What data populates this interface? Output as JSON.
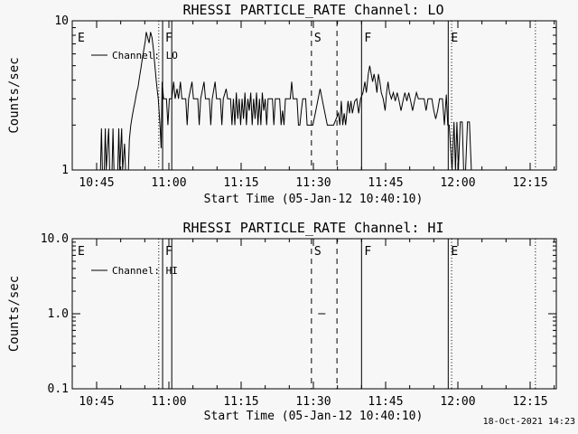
{
  "page": {
    "timestamp": "18-Oct-2021 14:23",
    "bg": "#f7f7f7",
    "fg": "#000000"
  },
  "markers": [
    {
      "m": 0.5,
      "style": "none",
      "label": "E"
    },
    {
      "m": 17.9,
      "style": "dotted",
      "label": ""
    },
    {
      "m": 18.7,
      "style": "solid",
      "label": "F"
    },
    {
      "m": 20.6,
      "style": "solid",
      "label": ""
    },
    {
      "m": 49.6,
      "style": "dashed",
      "label": "S"
    },
    {
      "m": 54.9,
      "style": "dashed",
      "label": ""
    },
    {
      "m": 60.0,
      "style": "solid",
      "label": "F"
    },
    {
      "m": 78.0,
      "style": "solid",
      "label": "E"
    },
    {
      "m": 78.7,
      "style": "dotted",
      "label": ""
    },
    {
      "m": 96.1,
      "style": "dotted",
      "label": ""
    }
  ],
  "chart_data": [
    {
      "type": "line",
      "panel": "LO",
      "title": "RHESSI PARTICLE_RATE Channel: LO",
      "xlabel": "Start Time (05-Jan-12 10:40:10)",
      "ylabel": "Counts/sec",
      "legend_label": "Channel: LO",
      "yscale": "log",
      "ylim": [
        1,
        10
      ],
      "yticks": [
        {
          "v": 1,
          "t": "1"
        },
        {
          "v": 10,
          "t": "10"
        }
      ],
      "x_unit": "minutes_after_10:40:00",
      "xlim_minutes": [
        -0.06,
        100.44
      ],
      "xticks": [
        {
          "m": 5,
          "t": "10:45"
        },
        {
          "m": 20,
          "t": "11:00"
        },
        {
          "m": 35,
          "t": "11:15"
        },
        {
          "m": 50,
          "t": "11:30"
        },
        {
          "m": 65,
          "t": "11:45"
        },
        {
          "m": 80,
          "t": "12:00"
        },
        {
          "m": 95,
          "t": "12:15"
        }
      ],
      "series": [
        {
          "name": "Channel: LO",
          "points": [
            [
              5.3,
              1
            ],
            [
              5.8,
              1
            ],
            [
              6.0,
              1.9
            ],
            [
              6.2,
              1
            ],
            [
              6.6,
              1
            ],
            [
              6.8,
              1.9
            ],
            [
              7.0,
              1
            ],
            [
              7.5,
              1.9
            ],
            [
              7.7,
              1
            ],
            [
              8.2,
              1
            ],
            [
              8.4,
              1.9
            ],
            [
              8.6,
              1
            ],
            [
              9.4,
              1
            ],
            [
              9.6,
              1.9
            ],
            [
              9.8,
              1
            ],
            [
              10.2,
              1.9
            ],
            [
              10.4,
              1
            ],
            [
              10.8,
              1.5
            ],
            [
              11.0,
              1
            ],
            [
              11.6,
              1
            ],
            [
              11.8,
              1.6
            ],
            [
              12.1,
              2.0
            ],
            [
              12.4,
              2.3
            ],
            [
              12.7,
              2.6
            ],
            [
              13.0,
              2.9
            ],
            [
              13.3,
              3.3
            ],
            [
              13.6,
              3.6
            ],
            [
              13.9,
              4.2
            ],
            [
              14.2,
              4.8
            ],
            [
              14.5,
              5.6
            ],
            [
              14.8,
              6.4
            ],
            [
              15.1,
              7.3
            ],
            [
              15.3,
              8.4
            ],
            [
              15.6,
              7.7
            ],
            [
              15.9,
              7.1
            ],
            [
              16.2,
              8.4
            ],
            [
              16.5,
              7.7
            ],
            [
              16.8,
              6.4
            ],
            [
              17.0,
              5.4
            ],
            [
              17.2,
              4.6
            ],
            [
              17.4,
              3.9
            ],
            [
              17.6,
              3.4
            ],
            [
              17.8,
              3.0
            ],
            [
              18.0,
              2.4
            ],
            [
              18.2,
              1.9
            ],
            [
              18.4,
              1.4
            ],
            [
              18.6,
              3.9
            ],
            [
              18.9,
              3.0
            ],
            [
              19.5,
              3.0
            ],
            [
              19.8,
              2.0
            ],
            [
              20.1,
              3.0
            ],
            [
              20.6,
              3.0
            ],
            [
              21.0,
              3.9
            ],
            [
              21.3,
              3.0
            ],
            [
              21.7,
              3.5
            ],
            [
              22.0,
              3.0
            ],
            [
              22.4,
              3.9
            ],
            [
              22.7,
              3.0
            ],
            [
              23.5,
              3.0
            ],
            [
              23.8,
              2.0
            ],
            [
              24.1,
              3.0
            ],
            [
              24.8,
              3.9
            ],
            [
              25.1,
              3.0
            ],
            [
              26.0,
              3.0
            ],
            [
              26.3,
              2.0
            ],
            [
              26.6,
              3.0
            ],
            [
              27.3,
              3.9
            ],
            [
              27.6,
              3.0
            ],
            [
              28.4,
              3.0
            ],
            [
              28.7,
              2.0
            ],
            [
              29.0,
              3.0
            ],
            [
              29.6,
              3.9
            ],
            [
              29.9,
              3.0
            ],
            [
              30.7,
              3.0
            ],
            [
              31.0,
              2.0
            ],
            [
              31.3,
              3.0
            ],
            [
              31.9,
              3.5
            ],
            [
              32.2,
              3.0
            ],
            [
              32.8,
              3.0
            ],
            [
              33.1,
              2.0
            ],
            [
              33.4,
              3.0
            ],
            [
              33.7,
              2.0
            ],
            [
              34.0,
              3.3
            ],
            [
              34.3,
              2.2
            ],
            [
              34.6,
              3.0
            ],
            [
              34.9,
              2.0
            ],
            [
              35.2,
              3.0
            ],
            [
              35.5,
              2.2
            ],
            [
              35.8,
              3.3
            ],
            [
              36.1,
              2.0
            ],
            [
              36.4,
              3.0
            ],
            [
              36.7,
              2.5
            ],
            [
              37.0,
              3.3
            ],
            [
              37.3,
              2.0
            ],
            [
              37.6,
              3.0
            ],
            [
              37.9,
              2.2
            ],
            [
              38.2,
              3.3
            ],
            [
              38.5,
              2.0
            ],
            [
              38.8,
              3.0
            ],
            [
              39.1,
              2.0
            ],
            [
              39.4,
              3.3
            ],
            [
              39.7,
              2.5
            ],
            [
              40.0,
              3.0
            ],
            [
              40.3,
              2.0
            ],
            [
              40.6,
              3.0
            ],
            [
              41.5,
              3.0
            ],
            [
              41.8,
              2.0
            ],
            [
              42.1,
              3.0
            ],
            [
              43.0,
              3.0
            ],
            [
              43.3,
              2.0
            ],
            [
              43.6,
              2.5
            ],
            [
              43.9,
              2.0
            ],
            [
              44.2,
              3.0
            ],
            [
              45.2,
              3.0
            ],
            [
              45.5,
              3.9
            ],
            [
              45.8,
              3.0
            ],
            [
              46.6,
              3.0
            ],
            [
              46.9,
              2.0
            ],
            [
              47.2,
              2.0
            ],
            [
              47.5,
              2.5
            ],
            [
              47.8,
              3.0
            ],
            [
              48.4,
              3.0
            ],
            [
              48.7,
              2.0
            ],
            [
              49.3,
              2.0
            ],
            [
              49.9,
              2.0
            ],
            [
              50.4,
              2.4
            ],
            [
              50.9,
              2.9
            ],
            [
              51.4,
              3.5
            ],
            [
              51.9,
              2.9
            ],
            [
              52.4,
              2.4
            ],
            [
              52.9,
              2.0
            ],
            [
              53.6,
              2.0
            ],
            [
              54.2,
              2.0
            ],
            [
              55.2,
              2.4
            ],
            [
              55.5,
              2.0
            ],
            [
              55.8,
              2.9
            ],
            [
              56.1,
              2.0
            ],
            [
              56.4,
              2.4
            ],
            [
              56.7,
              2.0
            ],
            [
              57.2,
              2.9
            ],
            [
              57.5,
              2.4
            ],
            [
              57.8,
              2.9
            ],
            [
              58.1,
              2.4
            ],
            [
              58.6,
              2.9
            ],
            [
              59.0,
              3.0
            ],
            [
              59.4,
              2.4
            ],
            [
              59.8,
              3.0
            ],
            [
              60.3,
              3.3
            ],
            [
              60.7,
              3.9
            ],
            [
              61.0,
              3.3
            ],
            [
              61.4,
              4.4
            ],
            [
              61.7,
              5.0
            ],
            [
              62.0,
              4.4
            ],
            [
              62.3,
              3.9
            ],
            [
              62.6,
              4.4
            ],
            [
              62.9,
              3.9
            ],
            [
              63.2,
              3.3
            ],
            [
              63.5,
              4.4
            ],
            [
              63.8,
              3.9
            ],
            [
              64.1,
              3.3
            ],
            [
              64.5,
              3.0
            ],
            [
              64.9,
              2.5
            ],
            [
              65.2,
              3.3
            ],
            [
              65.5,
              3.9
            ],
            [
              65.8,
              3.3
            ],
            [
              66.2,
              3.0
            ],
            [
              66.6,
              3.3
            ],
            [
              67.0,
              2.9
            ],
            [
              67.4,
              3.3
            ],
            [
              67.8,
              2.9
            ],
            [
              68.2,
              2.5
            ],
            [
              68.6,
              2.9
            ],
            [
              69.0,
              3.3
            ],
            [
              69.4,
              2.9
            ],
            [
              69.8,
              3.3
            ],
            [
              70.2,
              2.9
            ],
            [
              70.6,
              2.5
            ],
            [
              71.0,
              2.9
            ],
            [
              71.4,
              3.3
            ],
            [
              71.8,
              3.0
            ],
            [
              72.4,
              3.0
            ],
            [
              73.0,
              3.0
            ],
            [
              73.4,
              2.5
            ],
            [
              73.8,
              3.0
            ],
            [
              74.6,
              3.0
            ],
            [
              75.0,
              2.5
            ],
            [
              75.4,
              2.2
            ],
            [
              75.8,
              2.5
            ],
            [
              76.2,
              3.0
            ],
            [
              76.8,
              3.0
            ],
            [
              77.2,
              2.0
            ],
            [
              77.6,
              3.2
            ],
            [
              77.9,
              2.0
            ],
            [
              78.2,
              2.0
            ],
            [
              78.5,
              1.4
            ],
            [
              78.8,
              1.0
            ],
            [
              79.2,
              2.1
            ],
            [
              79.5,
              1.0
            ],
            [
              79.8,
              2.1
            ],
            [
              80.1,
              1.0
            ],
            [
              80.5,
              2.1
            ],
            [
              80.9,
              2.1
            ],
            [
              81.2,
              1.0
            ],
            [
              81.6,
              1.0
            ],
            [
              82.0,
              2.1
            ],
            [
              82.4,
              2.1
            ],
            [
              82.8,
              1.0
            ],
            [
              83.4,
              1.0
            ],
            [
              83.8,
              1.0
            ]
          ]
        }
      ]
    },
    {
      "type": "line",
      "panel": "HI",
      "title": "RHESSI PARTICLE_RATE Channel: HI",
      "xlabel": "Start Time (05-Jan-12 10:40:10)",
      "ylabel": "Counts/sec",
      "legend_label": "Channel: HI",
      "yscale": "log",
      "ylim": [
        0.1,
        10
      ],
      "yticks": [
        {
          "v": 0.1,
          "t": "0.1"
        },
        {
          "v": 1,
          "t": "1.0"
        },
        {
          "v": 10,
          "t": "10.0"
        }
      ],
      "x_unit": "minutes_after_10:40:00",
      "xlim_minutes": [
        -0.06,
        100.44
      ],
      "xticks": [
        {
          "m": 5,
          "t": "10:45"
        },
        {
          "m": 20,
          "t": "11:00"
        },
        {
          "m": 35,
          "t": "11:15"
        },
        {
          "m": 50,
          "t": "11:30"
        },
        {
          "m": 65,
          "t": "11:45"
        },
        {
          "m": 80,
          "t": "12:00"
        },
        {
          "m": 95,
          "t": "12:15"
        }
      ],
      "series": [
        {
          "name": "Channel: HI",
          "points": [
            [
              51.0,
              1.0
            ],
            [
              52.5,
              1.0
            ]
          ]
        }
      ]
    }
  ]
}
